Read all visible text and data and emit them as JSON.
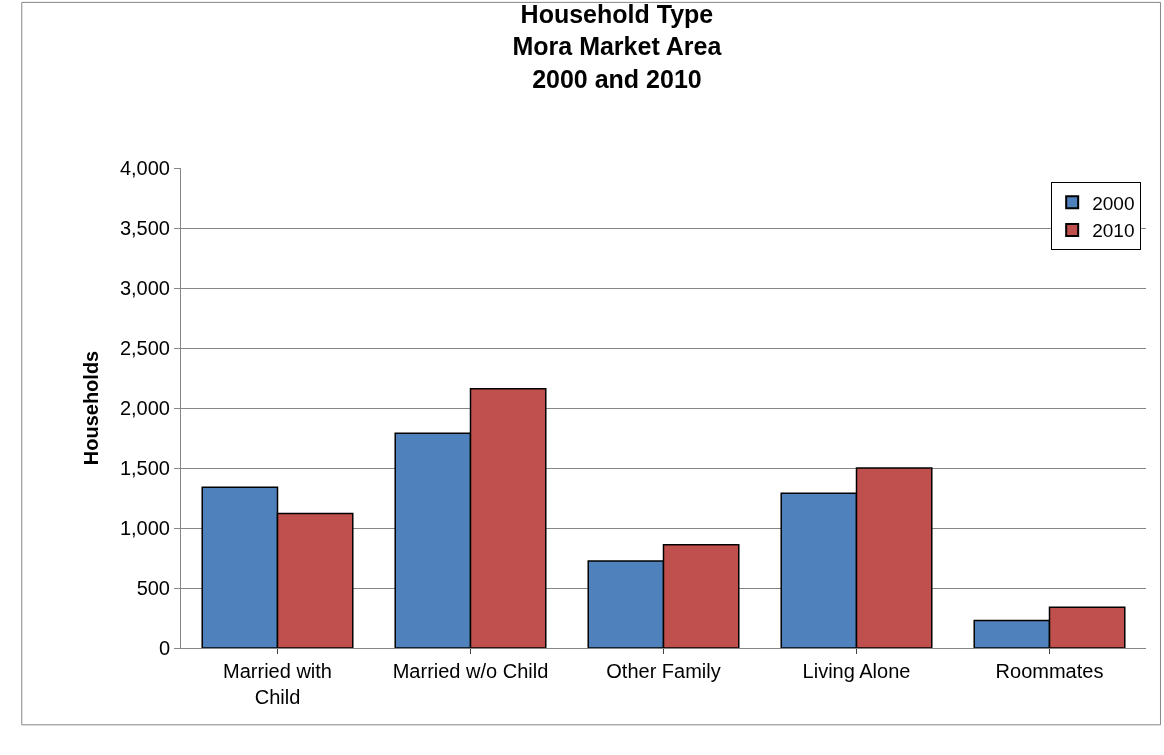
{
  "chart_data": {
    "type": "bar",
    "title": "Household Type\nMora Market Area\n2000 and 2010",
    "ylabel": "Households",
    "categories": [
      "Married with\nChild",
      "Married w/o Child",
      "Other Family",
      "Living Alone",
      "Roommates"
    ],
    "series": [
      {
        "name": "2000",
        "color": "#4f81bd",
        "values": [
          1340,
          1790,
          725,
          1290,
          230
        ]
      },
      {
        "name": "2010",
        "color": "#c0504d",
        "values": [
          1120,
          2160,
          860,
          1500,
          340
        ]
      }
    ],
    "ylim": [
      0,
      4000
    ],
    "yticks": [
      {
        "value": 0,
        "label": "0"
      },
      {
        "value": 500,
        "label": "500"
      },
      {
        "value": 1000,
        "label": "1,000"
      },
      {
        "value": 1500,
        "label": "1,500"
      },
      {
        "value": 2000,
        "label": "2,000"
      },
      {
        "value": 2500,
        "label": "2,500"
      },
      {
        "value": 3000,
        "label": "3,000"
      },
      {
        "value": 3500,
        "label": "3,500"
      },
      {
        "value": 4000,
        "label": "4,000"
      }
    ],
    "grid": "y",
    "legend": "top right"
  }
}
